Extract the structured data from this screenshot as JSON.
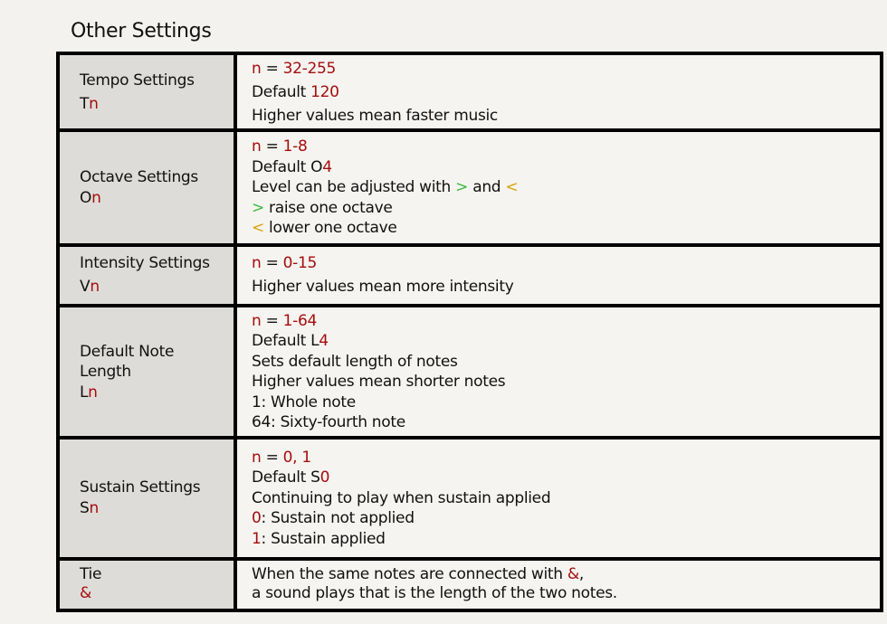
{
  "title": "Other Settings",
  "colors": {
    "red": "#a50d0d",
    "green": "#3db83d",
    "gold": "#d9a20b"
  },
  "rows": [
    {
      "name": [
        [
          {
            "t": "Tempo Settings"
          }
        ],
        [
          {
            "t": "T"
          },
          {
            "t": "n",
            "c": "red"
          }
        ]
      ],
      "desc": [
        [
          {
            "t": "n",
            "c": "red"
          },
          {
            "t": " = "
          },
          {
            "t": "32-255",
            "c": "red"
          }
        ],
        [
          {
            "t": "Default "
          },
          {
            "t": "120",
            "c": "red"
          }
        ],
        [
          {
            "t": "Higher values mean faster music"
          }
        ]
      ],
      "lh": "26px"
    },
    {
      "name": [
        [
          {
            "t": "Octave Settings"
          }
        ],
        [
          {
            "t": "O"
          },
          {
            "t": "n",
            "c": "red"
          }
        ]
      ],
      "desc": [
        [
          {
            "t": "n",
            "c": "red"
          },
          {
            "t": " = "
          },
          {
            "t": "1-8",
            "c": "red"
          }
        ],
        [
          {
            "t": "Default O"
          },
          {
            "t": "4",
            "c": "red"
          }
        ],
        [
          {
            "t": "Level can be adjusted with "
          },
          {
            "t": ">",
            "c": "green"
          },
          {
            "t": " and "
          },
          {
            "t": "<",
            "c": "gold"
          }
        ],
        [
          {
            "t": ">",
            "c": "green"
          },
          {
            "t": " raise one octave"
          }
        ],
        [
          {
            "t": "<",
            "c": "gold"
          },
          {
            "t": " lower one octave"
          }
        ]
      ]
    },
    {
      "name": [
        [
          {
            "t": "Intensity Settings"
          }
        ],
        [
          {
            "t": "V"
          },
          {
            "t": "n",
            "c": "red"
          }
        ]
      ],
      "desc": [
        [
          {
            "t": "n",
            "c": "red"
          },
          {
            "t": " = "
          },
          {
            "t": "0-15",
            "c": "red"
          }
        ],
        [
          {
            "t": "Higher values mean more intensity"
          }
        ]
      ],
      "lh": "26px"
    },
    {
      "name": [
        [
          {
            "t": "Default Note"
          }
        ],
        [
          {
            "t": "Length"
          }
        ],
        [
          {
            "t": "L"
          },
          {
            "t": "n",
            "c": "red"
          }
        ]
      ],
      "desc": [
        [
          {
            "t": "n",
            "c": "red"
          },
          {
            "t": " = "
          },
          {
            "t": "1-64",
            "c": "red"
          }
        ],
        [
          {
            "t": "Default L"
          },
          {
            "t": "4",
            "c": "red"
          }
        ],
        [
          {
            "t": "Sets default length of notes"
          }
        ],
        [
          {
            "t": "Higher values mean shorter notes"
          }
        ],
        [
          {
            "t": "1: Whole note"
          }
        ],
        [
          {
            "t": "64: Sixty-fourth note"
          }
        ]
      ]
    },
    {
      "name": [
        [
          {
            "t": "Sustain Settings"
          }
        ],
        [
          {
            "t": "S"
          },
          {
            "t": "n",
            "c": "red"
          }
        ]
      ],
      "desc": [
        [
          {
            "t": "n",
            "c": "red"
          },
          {
            "t": " = "
          },
          {
            "t": "0, 1",
            "c": "red"
          }
        ],
        [
          {
            "t": "Default S"
          },
          {
            "t": "0",
            "c": "red"
          }
        ],
        [
          {
            "t": "Continuing to play when sustain applied"
          }
        ],
        [
          {
            "t": "0",
            "c": "red"
          },
          {
            "t": ": Sustain not applied"
          }
        ],
        [
          {
            "t": "1",
            "c": "red"
          },
          {
            "t": ": Sustain applied"
          }
        ]
      ]
    },
    {
      "name": [
        [
          {
            "t": "Tie"
          }
        ],
        [
          {
            "t": "&",
            "c": "red"
          }
        ]
      ],
      "desc": [
        [
          {
            "t": "When the same notes are connected with "
          },
          {
            "t": "&",
            "c": "red"
          },
          {
            "t": ","
          }
        ],
        [
          {
            "t": "a sound plays that is the length of the two notes."
          }
        ]
      ]
    }
  ]
}
